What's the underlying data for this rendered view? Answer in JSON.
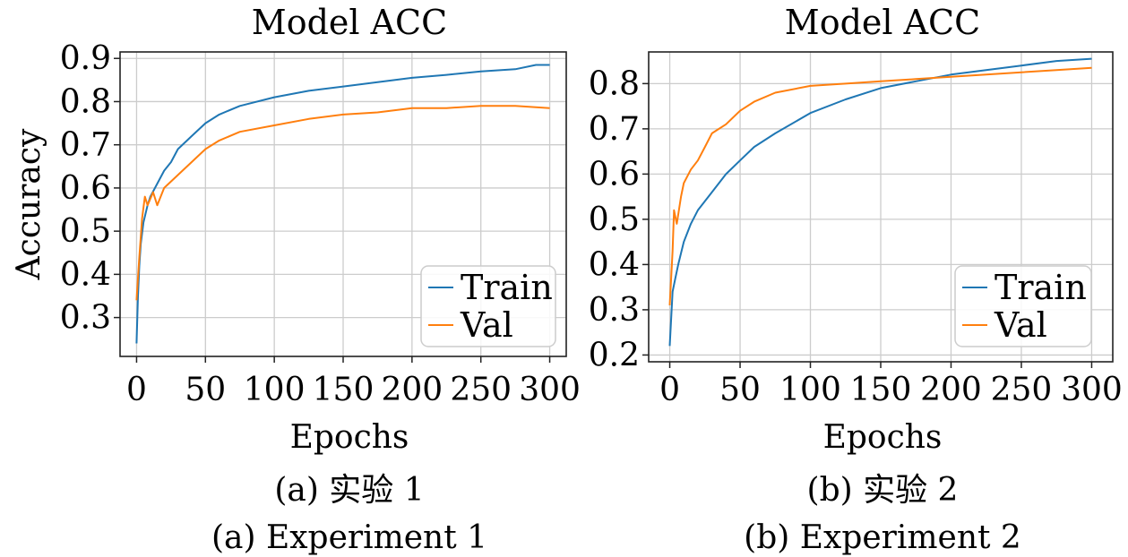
{
  "chart_data": [
    {
      "type": "line",
      "title": "Model ACC",
      "xlabel": "Epochs",
      "ylabel": "Accuracy",
      "xlim": [
        -12,
        312
      ],
      "ylim": [
        0.21,
        0.915
      ],
      "xticks": [
        "0",
        "50",
        "100",
        "150",
        "200",
        "250",
        "300"
      ],
      "xtick_values": [
        0,
        50,
        100,
        150,
        200,
        250,
        300
      ],
      "yticks": [
        "0.3",
        "0.4",
        "0.5",
        "0.6",
        "0.7",
        "0.8",
        "0.9"
      ],
      "ytick_values": [
        0.3,
        0.4,
        0.5,
        0.6,
        0.7,
        0.8,
        0.9
      ],
      "grid": true,
      "legend_position": "lower-right",
      "caption_cn": "(a) 实验 1",
      "caption_en": "(a) Experiment 1",
      "series": [
        {
          "name": "Train",
          "color": "#1f77b4",
          "x": [
            0,
            1,
            2,
            3,
            5,
            8,
            10,
            15,
            20,
            25,
            30,
            40,
            50,
            60,
            75,
            100,
            125,
            150,
            175,
            200,
            225,
            250,
            275,
            290,
            300
          ],
          "y": [
            0.24,
            0.35,
            0.42,
            0.47,
            0.52,
            0.56,
            0.58,
            0.61,
            0.64,
            0.66,
            0.69,
            0.72,
            0.75,
            0.77,
            0.79,
            0.81,
            0.825,
            0.835,
            0.845,
            0.855,
            0.862,
            0.87,
            0.875,
            0.885,
            0.885
          ]
        },
        {
          "name": "Val",
          "color": "#ff7f0e",
          "x": [
            0,
            2,
            4,
            6,
            8,
            12,
            15,
            20,
            30,
            40,
            50,
            60,
            75,
            100,
            125,
            150,
            175,
            200,
            225,
            250,
            275,
            300
          ],
          "y": [
            0.34,
            0.44,
            0.53,
            0.58,
            0.56,
            0.59,
            0.56,
            0.6,
            0.63,
            0.66,
            0.69,
            0.71,
            0.73,
            0.745,
            0.76,
            0.77,
            0.775,
            0.785,
            0.785,
            0.79,
            0.79,
            0.785
          ]
        }
      ]
    },
    {
      "type": "line",
      "title": "Model ACC",
      "xlabel": "Epochs",
      "ylabel": "",
      "xlim": [
        -15,
        315
      ],
      "ylim": [
        0.185,
        0.87
      ],
      "xticks": [
        "0",
        "50",
        "100",
        "150",
        "200",
        "250",
        "300"
      ],
      "xtick_values": [
        0,
        50,
        100,
        150,
        200,
        250,
        300
      ],
      "yticks": [
        "0.2",
        "0.3",
        "0.4",
        "0.5",
        "0.6",
        "0.7",
        "0.8"
      ],
      "ytick_values": [
        0.2,
        0.3,
        0.4,
        0.5,
        0.6,
        0.7,
        0.8
      ],
      "grid": true,
      "legend_position": "lower-right",
      "caption_cn": "(b) 实验 2",
      "caption_en": "(b) Experiment 2",
      "series": [
        {
          "name": "Train",
          "color": "#1f77b4",
          "x": [
            0,
            2,
            4,
            6,
            10,
            15,
            20,
            30,
            40,
            50,
            60,
            75,
            100,
            125,
            150,
            175,
            200,
            225,
            250,
            275,
            300
          ],
          "y": [
            0.22,
            0.34,
            0.37,
            0.4,
            0.45,
            0.49,
            0.52,
            0.56,
            0.6,
            0.63,
            0.66,
            0.69,
            0.735,
            0.765,
            0.79,
            0.805,
            0.82,
            0.83,
            0.84,
            0.85,
            0.855
          ]
        },
        {
          "name": "Val",
          "color": "#ff7f0e",
          "x": [
            0,
            2,
            3,
            5,
            8,
            10,
            15,
            20,
            25,
            30,
            40,
            50,
            60,
            75,
            100,
            125,
            150,
            175,
            200,
            225,
            250,
            275,
            300
          ],
          "y": [
            0.31,
            0.43,
            0.52,
            0.49,
            0.55,
            0.58,
            0.61,
            0.63,
            0.66,
            0.69,
            0.71,
            0.74,
            0.76,
            0.78,
            0.795,
            0.8,
            0.805,
            0.81,
            0.815,
            0.82,
            0.825,
            0.83,
            0.835
          ]
        }
      ]
    }
  ]
}
